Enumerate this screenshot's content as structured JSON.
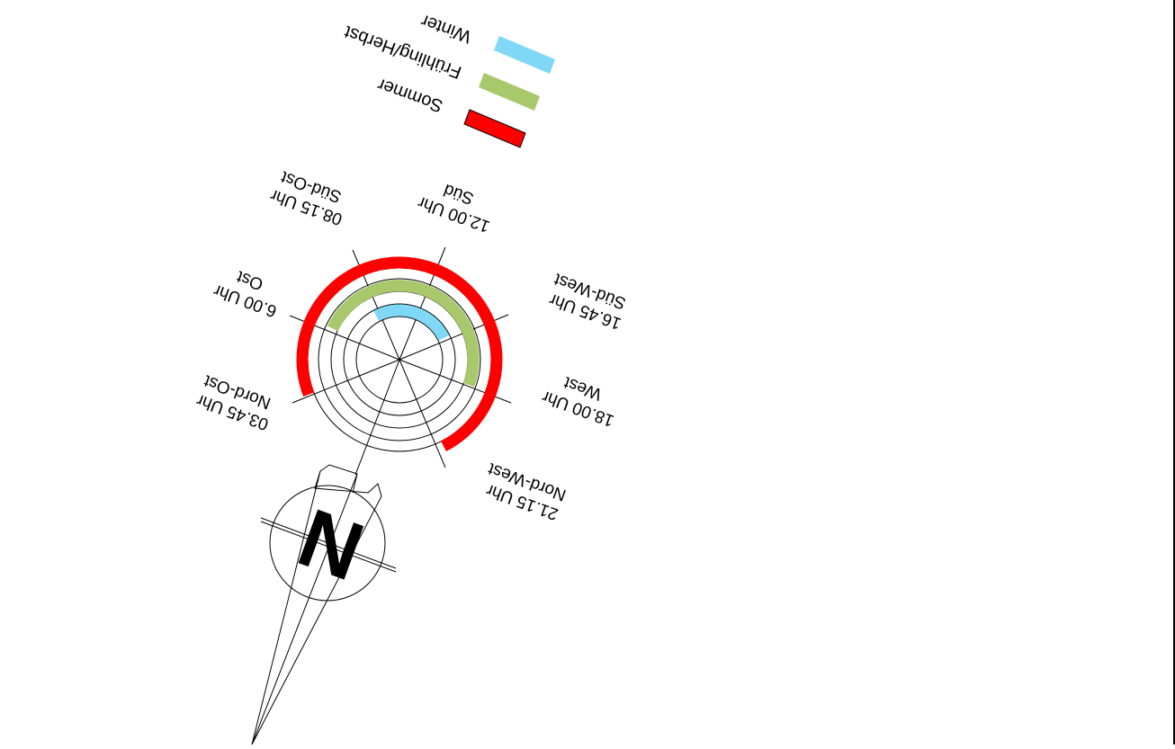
{
  "colors": {
    "summer": "#ff0000",
    "spring_autumn": "#a8c96b",
    "winter": "#7fd8f5",
    "lines": "#000000"
  },
  "legend": {
    "summer": "Sommer",
    "spring_autumn": "Frühling/Herbst",
    "winter": "Winter"
  },
  "directions": [
    {
      "key": "nordost",
      "name": "Nord-Ost",
      "time": "03.45 Uhr"
    },
    {
      "key": "ost",
      "name": "Ost",
      "time": "6.00 Uhr"
    },
    {
      "key": "suedost",
      "name": "Süd-Ost",
      "time": "08.15 Uhr"
    },
    {
      "key": "sued",
      "name": "Süd",
      "time": "12.00 Uhr"
    },
    {
      "key": "suedwest",
      "name": "Süd-West",
      "time": "16.45 Uhr"
    },
    {
      "key": "west",
      "name": "West",
      "time": "18.00 Uhr"
    },
    {
      "key": "nordwest",
      "name": "Nord-West",
      "time": "21.15 Uhr"
    }
  ],
  "north_label": "N"
}
